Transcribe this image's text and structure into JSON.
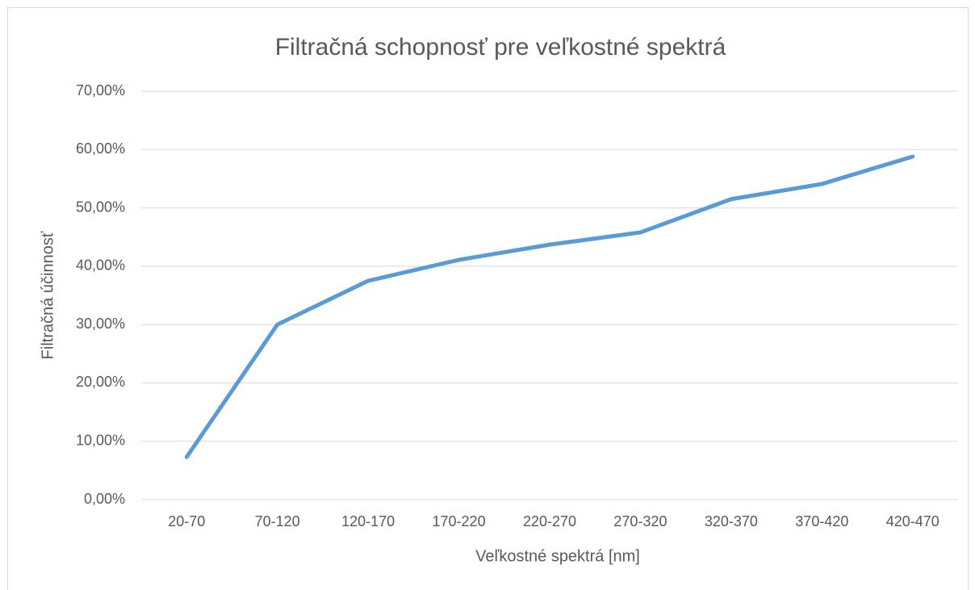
{
  "chart_data": {
    "type": "line",
    "title": "Filtračná schopnosť pre veľkostné spektrá",
    "x_label": "Veľkostné spektrá [nm]",
    "y_label": "Filtračná účinnosť",
    "categories": [
      "20-70",
      "70-120",
      "120-170",
      "170-220",
      "220-270",
      "270-320",
      "320-370",
      "370-420",
      "420-470"
    ],
    "series": [
      {
        "name": "Filtračná účinnosť",
        "color": "#5b9bd5",
        "values": [
          7.3,
          30.0,
          37.5,
          41.1,
          43.7,
          45.8,
          51.5,
          54.1,
          58.8
        ]
      }
    ],
    "ylim": [
      0,
      70
    ],
    "yticks": [
      {
        "value": 0,
        "label": "0,00%"
      },
      {
        "value": 10,
        "label": "10,00%"
      },
      {
        "value": 20,
        "label": "20,00%"
      },
      {
        "value": 30,
        "label": "30,00%"
      },
      {
        "value": 40,
        "label": "40,00%"
      },
      {
        "value": 50,
        "label": "50,00%"
      },
      {
        "value": 60,
        "label": "60,00%"
      },
      {
        "value": 70,
        "label": "70,00%"
      }
    ],
    "grid": true
  }
}
